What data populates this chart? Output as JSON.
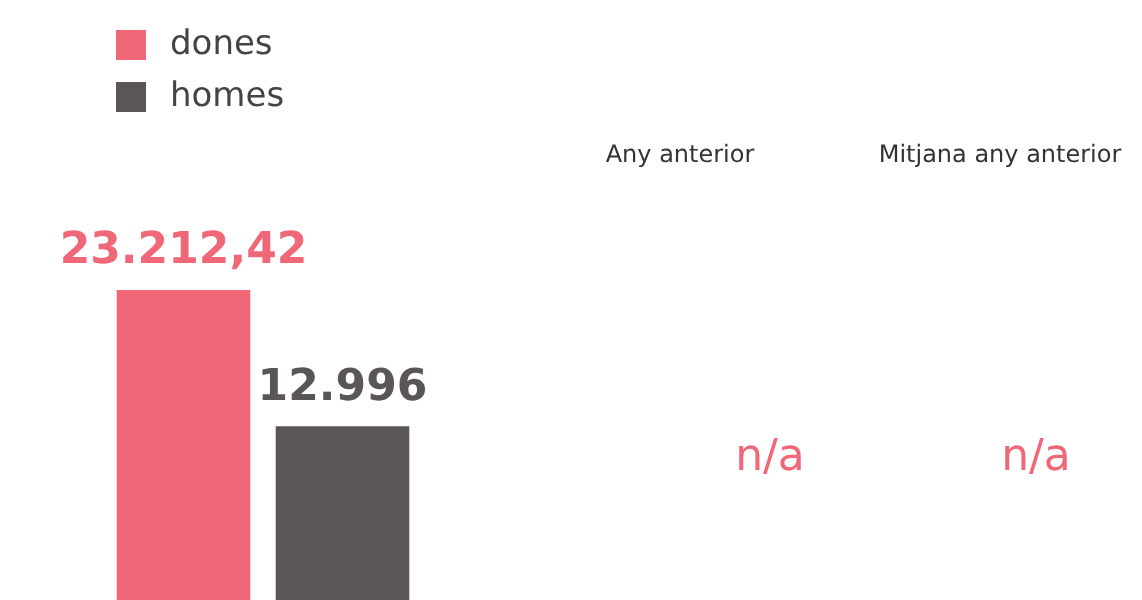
{
  "chart_data": {
    "type": "bar",
    "categories": [
      null
    ],
    "series": [
      {
        "name": "dones",
        "color": "#f06878",
        "values": [
          23212.42
        ],
        "value_labels": [
          "23.212,42"
        ]
      },
      {
        "name": "homes",
        "color": "#5a5558",
        "values": [
          12996
        ],
        "value_labels": [
          "12.996"
        ]
      }
    ],
    "legend": "top left",
    "tick_labels": false,
    "annotations": [
      "Any anterior",
      "n/a",
      "Mitjana any anterior",
      "n/a"
    ]
  }
}
